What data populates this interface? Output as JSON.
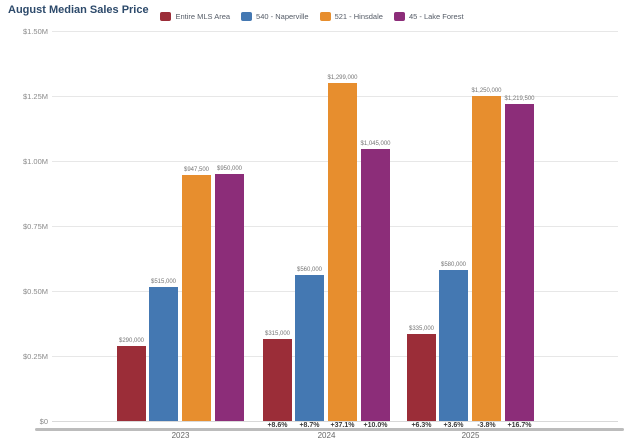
{
  "title": "August Median Sales Price",
  "chart_data": {
    "type": "bar",
    "title": "August Median Sales Price",
    "categories": [
      "2023",
      "2024",
      "2025"
    ],
    "series": [
      {
        "name": "Entire MLS Area",
        "color": "#9b2d38",
        "values": [
          290000,
          315000,
          335000
        ],
        "value_labels": [
          "$290,000",
          "$315,000",
          "$335,000"
        ],
        "pct_change": [
          "",
          "+8.6%",
          "+6.3%"
        ]
      },
      {
        "name": "540 - Naperville",
        "color": "#4478b2",
        "values": [
          515000,
          560000,
          580000
        ],
        "value_labels": [
          "$515,000",
          "$560,000",
          "$580,000"
        ],
        "pct_change": [
          "",
          "+8.7%",
          "+3.6%"
        ]
      },
      {
        "name": "521 - Hinsdale",
        "color": "#e78e2e",
        "values": [
          947500,
          1299000,
          1250000
        ],
        "value_labels": [
          "$947,500",
          "$1,299,000",
          "$1,250,000"
        ],
        "pct_change": [
          "",
          "+37.1%",
          "-3.8%"
        ]
      },
      {
        "name": "45 - Lake Forest",
        "color": "#8c2d79",
        "values": [
          950000,
          1045000,
          1219500
        ],
        "value_labels": [
          "$950,000",
          "$1,045,000",
          "$1,219,500"
        ],
        "pct_change": [
          "",
          "+10.0%",
          "+16.7%"
        ]
      }
    ],
    "ylim": [
      0,
      1500000
    ],
    "yticks": [
      {
        "value": 1500000,
        "label": "$1.50M"
      },
      {
        "value": 1250000,
        "label": "$1.25M"
      },
      {
        "value": 1000000,
        "label": "$1.00M"
      },
      {
        "value": 750000,
        "label": "$0.75M"
      },
      {
        "value": 500000,
        "label": "$0.50M"
      },
      {
        "value": 250000,
        "label": "$0.25M"
      },
      {
        "value": 0,
        "label": "$0"
      }
    ],
    "grid": true,
    "legend_position": "top"
  }
}
